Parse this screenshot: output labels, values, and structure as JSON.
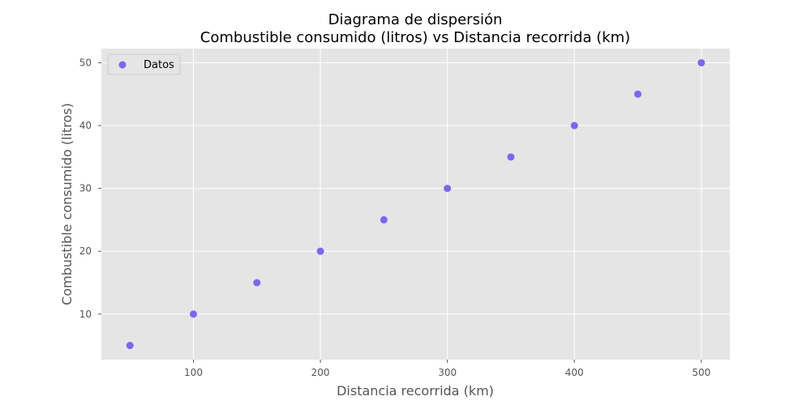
{
  "chart_data": {
    "type": "scatter",
    "title": "Diagrama de dispersión",
    "subtitle": "Combustible consumido (litros) vs Distancia recorrida (km)",
    "xlabel": "Distancia recorrida (km)",
    "ylabel": "Combustible consumido (litros)",
    "xlim": [
      27.5,
      522.5
    ],
    "ylim": [
      2.75,
      52.25
    ],
    "xticks": [
      100,
      200,
      300,
      400,
      500
    ],
    "yticks": [
      10,
      20,
      30,
      40,
      50
    ],
    "grid": true,
    "legend_position": "top-left",
    "series": [
      {
        "name": "Datos",
        "color": "#7b68ee",
        "x": [
          50,
          100,
          150,
          200,
          250,
          300,
          350,
          400,
          450,
          500
        ],
        "y": [
          5,
          10,
          15,
          20,
          25,
          30,
          35,
          40,
          45,
          50
        ]
      }
    ]
  },
  "colors": {
    "plot_background": "#e5e5e5",
    "grid": "#ffffff",
    "marker": "#7b68ee"
  }
}
